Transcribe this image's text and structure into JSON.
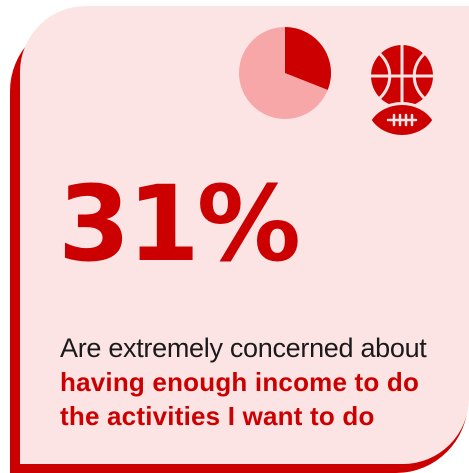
{
  "stat": {
    "value": "31%",
    "line1": "Are extremely concerned about",
    "line2": "having enough income to do",
    "line3": "the activities I want to do"
  },
  "pie_icon": {
    "highlighted_fraction": 0.31,
    "highlight_color": "#cc0000",
    "base_color": "#f7a7a7"
  },
  "sports_icon": {
    "icons": [
      "basketball-icon",
      "football-icon"
    ],
    "color": "#cc0000"
  },
  "colors": {
    "accent": "#cc0000",
    "card_background": "#fde4e4",
    "text": "#1a1a1a"
  }
}
